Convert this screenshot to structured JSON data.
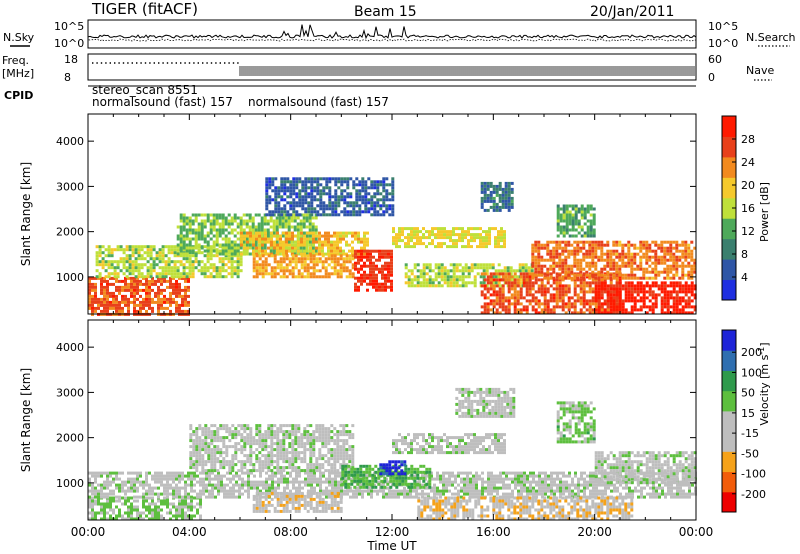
{
  "header": {
    "station": "TIGER (fitACF)",
    "beam": "Beam 15",
    "date": "20/Jan/2011"
  },
  "noise_panel": {
    "left_label": "N.Sky",
    "right_label": "N.Search",
    "left_ticks": [
      "10^5",
      "10^0"
    ],
    "right_ticks": [
      "10^5",
      "10^0"
    ]
  },
  "freq_panel": {
    "left_label_1": "Freq.",
    "left_label_2": "[MHz]",
    "right_label": "Nave",
    "left_ticks": [
      "18",
      "8"
    ],
    "right_ticks": [
      "60",
      "0"
    ]
  },
  "cpid": {
    "label": "CPID",
    "line1": "stereo_scan 8551",
    "line2a": "normalsound (fast) 157",
    "line2b": "normalsound (fast) 157"
  },
  "chart_data": [
    {
      "type": "heatmap",
      "title": "",
      "xlabel": "Time UT",
      "ylabel": "Slant Range [km]",
      "x_ticks": [
        "00:00",
        "04:00",
        "08:00",
        "12:00",
        "16:00",
        "20:00",
        "00:00"
      ],
      "xlim_hours": [
        0,
        24
      ],
      "y_ticks": [
        1000,
        2000,
        3000,
        4000
      ],
      "ylim": [
        180,
        4600
      ],
      "colorbar": {
        "label": "Power [dB]",
        "ticks": [
          4,
          8,
          12,
          16,
          20,
          24,
          28
        ],
        "range": [
          0,
          32
        ],
        "colors": [
          "#1f2fe0",
          "#2f56a6",
          "#3a7f6e",
          "#4ea95a",
          "#bfe03a",
          "#f5c92c",
          "#f28a1e",
          "#e8401a",
          "#ff1a00"
        ]
      },
      "echo_regions": [
        {
          "t0": 0.0,
          "t1": 4.0,
          "r0": 200,
          "r1": 1000,
          "level": 26
        },
        {
          "t0": 0.3,
          "t1": 6.0,
          "r0": 1000,
          "r1": 1700,
          "level": 16
        },
        {
          "t0": 3.5,
          "t1": 9.0,
          "r0": 1500,
          "r1": 2400,
          "level": 14
        },
        {
          "t0": 6.0,
          "t1": 11.0,
          "r0": 1500,
          "r1": 2000,
          "level": 20
        },
        {
          "t0": 6.5,
          "t1": 10.5,
          "r0": 1000,
          "r1": 1500,
          "level": 22
        },
        {
          "t0": 7.0,
          "t1": 12.0,
          "r0": 2400,
          "r1": 3200,
          "level": 6
        },
        {
          "t0": 10.5,
          "t1": 12.0,
          "r0": 700,
          "r1": 1600,
          "level": 28
        },
        {
          "t0": 12.0,
          "t1": 16.5,
          "r0": 1700,
          "r1": 2100,
          "level": 18
        },
        {
          "t0": 15.5,
          "t1": 16.8,
          "r0": 2500,
          "r1": 3100,
          "level": 8
        },
        {
          "t0": 12.5,
          "t1": 17.5,
          "r0": 800,
          "r1": 1300,
          "level": 16
        },
        {
          "t0": 15.5,
          "t1": 21.0,
          "r0": 200,
          "r1": 1100,
          "level": 26
        },
        {
          "t0": 17.5,
          "t1": 24.0,
          "r0": 1000,
          "r1": 1800,
          "level": 24
        },
        {
          "t0": 20.0,
          "t1": 24.0,
          "r0": 200,
          "r1": 900,
          "level": 30
        },
        {
          "t0": 18.5,
          "t1": 20.0,
          "r0": 1900,
          "r1": 2600,
          "level": 12
        }
      ]
    },
    {
      "type": "heatmap",
      "title": "",
      "xlabel": "Time UT",
      "ylabel": "Slant Range [km]",
      "x_ticks": [
        "00:00",
        "04:00",
        "08:00",
        "12:00",
        "16:00",
        "20:00",
        "00:00"
      ],
      "xlim_hours": [
        0,
        24
      ],
      "y_ticks": [
        1000,
        2000,
        3000,
        4000
      ],
      "ylim": [
        180,
        4600
      ],
      "colorbar": {
        "label": "Velocity [m s",
        "label_exp": "-1",
        "label_tail": "]",
        "ticks": [
          200,
          100,
          50,
          15,
          -15,
          -50,
          -100,
          -200
        ],
        "range": [
          -250,
          250
        ],
        "colors": [
          "#ee0000",
          "#f25c0a",
          "#f5a21a",
          "#bebebe",
          "#bebebe",
          "#5dbf3e",
          "#2f9a4c",
          "#2f6fb0",
          "#1e24d8"
        ]
      },
      "echo_regions": [
        {
          "t0": 0.0,
          "t1": 4.5,
          "r0": 200,
          "r1": 700,
          "level": 40
        },
        {
          "t0": 0.0,
          "t1": 24.0,
          "r0": 700,
          "r1": 1250,
          "level": 0
        },
        {
          "t0": 4.0,
          "t1": 10.5,
          "r0": 1300,
          "r1": 2300,
          "level": 0
        },
        {
          "t0": 6.5,
          "t1": 10.0,
          "r0": 400,
          "r1": 800,
          "level": -60
        },
        {
          "t0": 10.0,
          "t1": 13.5,
          "r0": 900,
          "r1": 1400,
          "level": 80
        },
        {
          "t0": 11.5,
          "t1": 12.5,
          "r0": 1200,
          "r1": 1500,
          "level": 220
        },
        {
          "t0": 12.0,
          "t1": 16.5,
          "r0": 1700,
          "r1": 2100,
          "level": 0
        },
        {
          "t0": 14.5,
          "t1": 16.8,
          "r0": 2500,
          "r1": 3100,
          "level": 0
        },
        {
          "t0": 13.0,
          "t1": 21.5,
          "r0": 200,
          "r1": 700,
          "level": -70
        },
        {
          "t0": 18.5,
          "t1": 20.0,
          "r0": 1900,
          "r1": 2800,
          "level": 40
        },
        {
          "t0": 20.0,
          "t1": 24.0,
          "r0": 1000,
          "r1": 1700,
          "level": 0
        }
      ]
    }
  ]
}
